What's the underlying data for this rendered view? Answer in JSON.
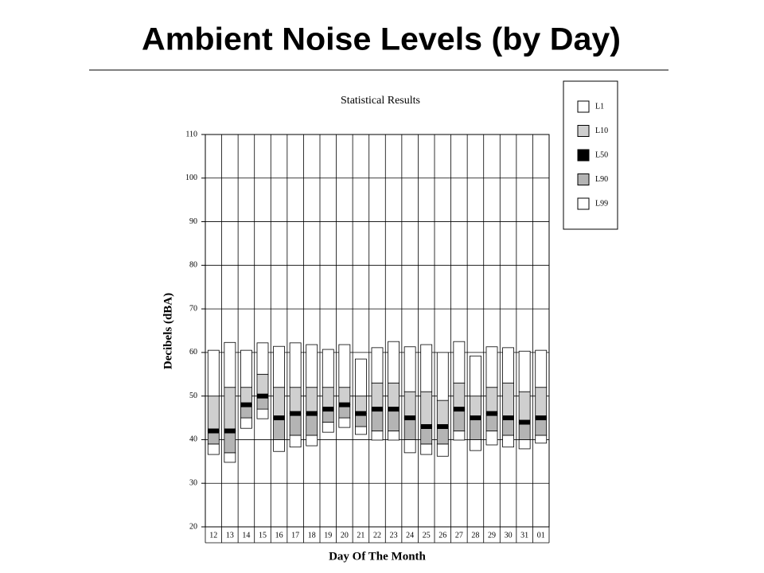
{
  "chart_data": {
    "type": "range-bar",
    "title": "Ambient Noise Levels (by Day)",
    "subtitle": "Statistical Results",
    "y_label": "Decibels (dBA)",
    "x_label": "Day Of The Month",
    "categories": [
      "12",
      "13",
      "14",
      "15",
      "16",
      "17",
      "18",
      "19",
      "20",
      "21",
      "22",
      "23",
      "24",
      "25",
      "26",
      "27",
      "28",
      "29",
      "30",
      "31",
      "01"
    ],
    "series": [
      {
        "name": "L1",
        "color": "#ffffff",
        "values": [
          60.5,
          62.3,
          60.5,
          62.2,
          61.4,
          62.2,
          61.8,
          60.7,
          61.8,
          58.5,
          61.1,
          62.5,
          61.3,
          61.8,
          60,
          62.5,
          59.2,
          61.3,
          61.1,
          60.3,
          60.5
        ]
      },
      {
        "name": "L10",
        "color": "#cfcfcf",
        "values": [
          50,
          52,
          52,
          55,
          52,
          52,
          52,
          52,
          52,
          50,
          53,
          53,
          51,
          51,
          49,
          53,
          50,
          52,
          53,
          51,
          52
        ]
      },
      {
        "name": "L50",
        "color": "#000000",
        "values": [
          42,
          42,
          48,
          50,
          45,
          46,
          46,
          47,
          48,
          46,
          47,
          47,
          45,
          43,
          43,
          47,
          45,
          46,
          45,
          44,
          45
        ]
      },
      {
        "name": "L90",
        "color": "#b4b4b4",
        "values": [
          39,
          37,
          45,
          47,
          40,
          41,
          41,
          44,
          45,
          43,
          42,
          42,
          40,
          39,
          39,
          42,
          40,
          42,
          41,
          40,
          41
        ]
      },
      {
        "name": "L99",
        "color": "#ffffff",
        "values": [
          36.6,
          34.8,
          42.6,
          44.8,
          37.3,
          38.3,
          38.6,
          41.7,
          42.8,
          41.2,
          39.9,
          39.9,
          37,
          36.6,
          36.2,
          39.9,
          37.5,
          38.8,
          38.3,
          37.9,
          39.2
        ]
      }
    ],
    "ylim": [
      20,
      110
    ],
    "yticks": [
      20,
      30,
      40,
      50,
      60,
      70,
      80,
      90,
      100,
      110
    ],
    "grid": true
  }
}
